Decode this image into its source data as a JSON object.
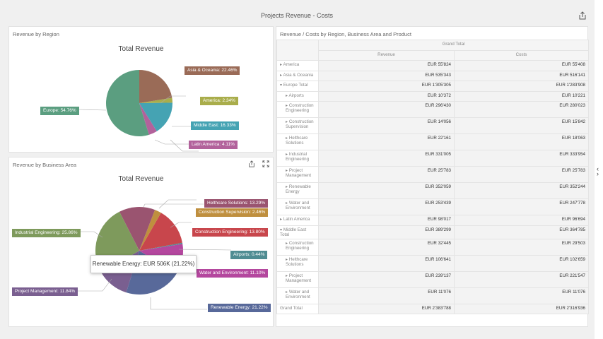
{
  "header": {
    "title": "Projects Revenue - Costs"
  },
  "region_panel": {
    "title": "Revenue by Region",
    "chart_title": "Total Revenue"
  },
  "area_panel": {
    "title": "Revenue by Business Area",
    "chart_title": "Total Revenue",
    "tooltip": "Renewable Energy: EUR 506K (21.22%)"
  },
  "grid_panel": {
    "title": "Revenue / Costs by Region, Business Area and Product",
    "grand_total": "Grand Total",
    "col_revenue": "Revenue",
    "col_costs": "Costs",
    "rows": [
      {
        "label": "America",
        "rev": "EUR 55'824",
        "cost": "EUR 55'408",
        "level": 0,
        "two": false,
        "marker": "▸"
      },
      {
        "label": "Asia & Oceania",
        "rev": "EUR 535'343",
        "cost": "EUR 516'141",
        "level": 0,
        "two": false,
        "marker": "▸"
      },
      {
        "label": "Europe Total",
        "rev": "EUR 1'305'305",
        "cost": "EUR 1'283'908",
        "level": 0,
        "two": false,
        "marker": "▾"
      },
      {
        "label": "Airports",
        "rev": "EUR 10'372",
        "cost": "EUR 10'221",
        "level": 1,
        "two": false,
        "marker": "▸"
      },
      {
        "label": "Construction Engineering",
        "rev": "EUR 296'430",
        "cost": "EUR 280'023",
        "level": 1,
        "two": true,
        "marker": "▸"
      },
      {
        "label": "Construction Supervision",
        "rev": "EUR 14'056",
        "cost": "EUR 15'842",
        "level": 1,
        "two": true,
        "marker": "▸"
      },
      {
        "label": "Helthcare Solutions",
        "rev": "EUR 22'161",
        "cost": "EUR 18'063",
        "level": 1,
        "two": true,
        "marker": "▸"
      },
      {
        "label": "Industrial Engineering",
        "rev": "EUR 331'005",
        "cost": "EUR 333'954",
        "level": 1,
        "two": true,
        "marker": "▸"
      },
      {
        "label": "Project Management",
        "rev": "EUR 25'783",
        "cost": "EUR 25'783",
        "level": 1,
        "two": true,
        "marker": "▸"
      },
      {
        "label": "Renewable Energy",
        "rev": "EUR 352'059",
        "cost": "EUR 352'244",
        "level": 1,
        "two": true,
        "marker": "▸"
      },
      {
        "label": "Water and Environment",
        "rev": "EUR 253'439",
        "cost": "EUR 247'778",
        "level": 1,
        "two": true,
        "marker": "▸"
      },
      {
        "label": "Latin America",
        "rev": "EUR 98'017",
        "cost": "EUR 96'694",
        "level": 0,
        "two": false,
        "marker": "▸"
      },
      {
        "label": "Middle East Total",
        "rev": "EUR 389'299",
        "cost": "EUR 364'785",
        "level": 0,
        "two": false,
        "marker": "▾"
      },
      {
        "label": "Construction Engineering",
        "rev": "EUR 32'445",
        "cost": "EUR 29'503",
        "level": 1,
        "two": true,
        "marker": "▸"
      },
      {
        "label": "Helthcare Solutions",
        "rev": "EUR 106'641",
        "cost": "EUR 102'659",
        "level": 1,
        "two": true,
        "marker": "▸"
      },
      {
        "label": "Project Management",
        "rev": "EUR 239'137",
        "cost": "EUR 221'547",
        "level": 1,
        "two": true,
        "marker": "▸"
      },
      {
        "label": "Water and Environment",
        "rev": "EUR 11'076",
        "cost": "EUR 11'076",
        "level": 1,
        "two": true,
        "marker": "▸"
      },
      {
        "label": "Grand Total",
        "rev": "EUR 2'383'788",
        "cost": "EUR 2'316'936",
        "level": 0,
        "two": false,
        "marker": ""
      }
    ]
  },
  "chart_data": [
    {
      "type": "pie",
      "title": "Total Revenue",
      "slices": [
        {
          "name": "Asia & Oceania",
          "value": 22.46,
          "label": "Asia & Oceania: 22.46%",
          "color": "#9a6b57"
        },
        {
          "name": "America",
          "value": 2.34,
          "label": "America: 2.34%",
          "color": "#a9ad4b"
        },
        {
          "name": "Middle East",
          "value": 16.33,
          "label": "Middle East: 16.33%",
          "color": "#45a3b3"
        },
        {
          "name": "Latin America",
          "value": 4.11,
          "label": "Latin America: 4.11%",
          "color": "#b2629b"
        },
        {
          "name": "Europe",
          "value": 54.76,
          "label": "Europe: 54.76%",
          "color": "#5b9e80"
        }
      ]
    },
    {
      "type": "pie",
      "title": "Total Revenue",
      "slices": [
        {
          "name": "Industrial Engineering",
          "value": 25.86,
          "label": "Industrial Engineering: 25.86%",
          "color": "#7e9a5c"
        },
        {
          "name": "Helthcare Solutions",
          "value": 13.29,
          "label": "Helthcare Solutions: 13.29%",
          "color": "#9a5470"
        },
        {
          "name": "Construction Supervision",
          "value": 2.46,
          "label": "Construction Supervision: 2.46%",
          "color": "#bf8f3e"
        },
        {
          "name": "Construction Engineering",
          "value": 13.8,
          "label": "Construction Engineering: 13.80%",
          "color": "#c8464c"
        },
        {
          "name": "Airports",
          "value": 0.44,
          "label": "Airports: 0.44%",
          "color": "#4f8c92"
        },
        {
          "name": "Water and Environment",
          "value": 11.1,
          "label": "Water and Environment: 11.10%",
          "color": "#b4479e"
        },
        {
          "name": "Renewable Energy",
          "value": 21.22,
          "label": "Renewable Energy: 21.22%",
          "color": "#58699a"
        },
        {
          "name": "Project Management",
          "value": 11.84,
          "label": "Project Management: 11.84%",
          "color": "#7a5f90"
        }
      ]
    }
  ]
}
